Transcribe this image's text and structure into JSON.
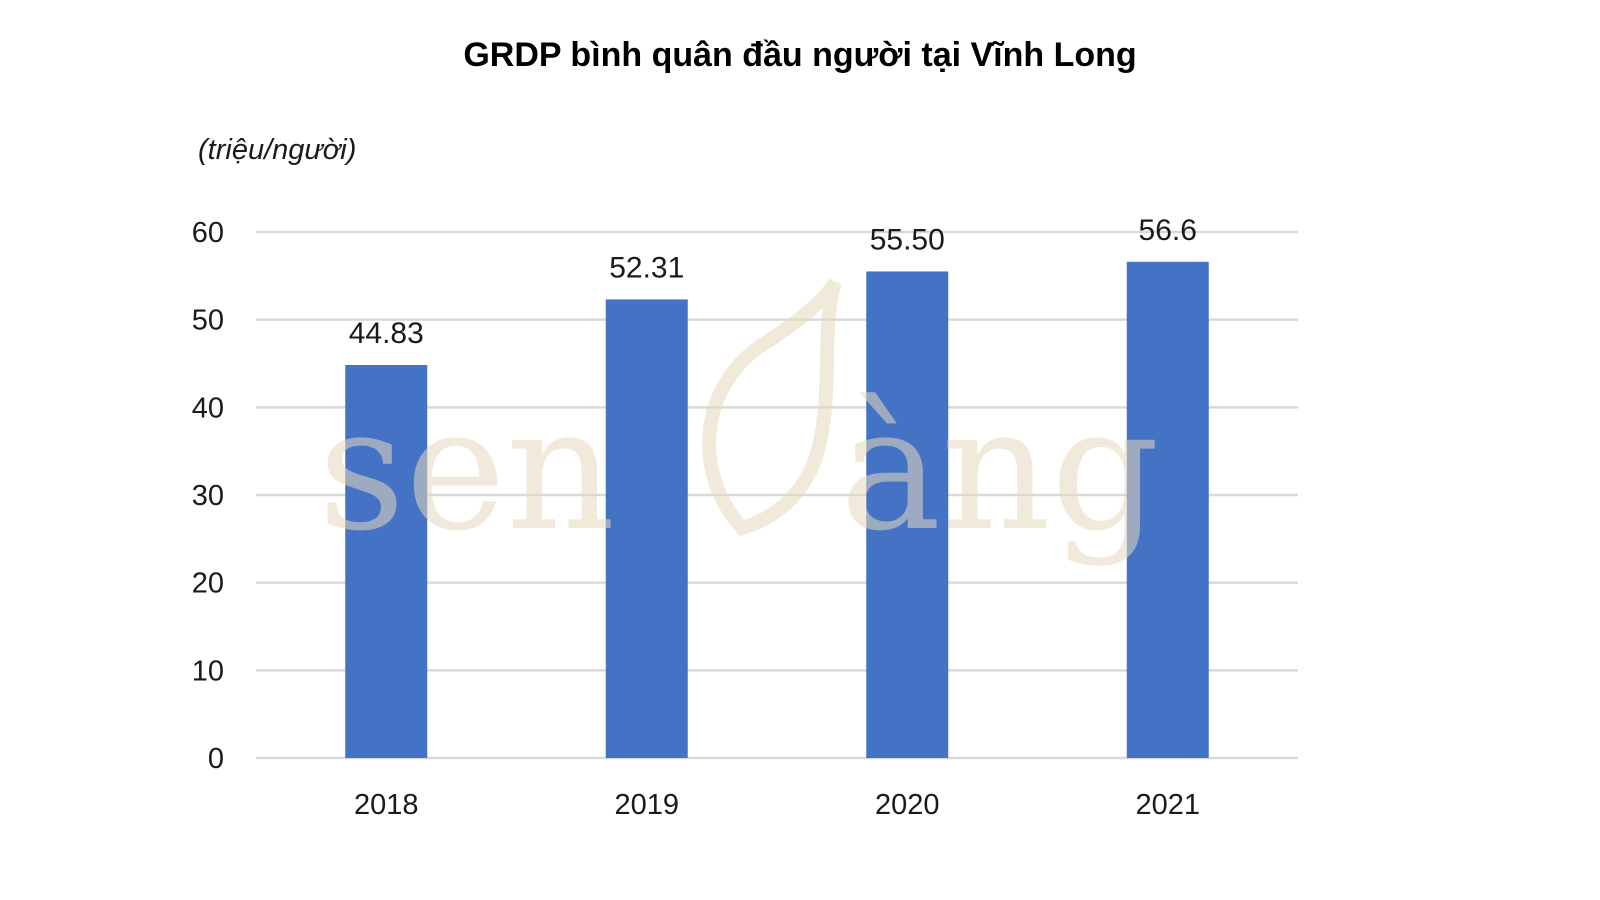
{
  "chart_data": {
    "type": "bar",
    "title": "GRDP bình quân đầu người tại Vĩnh Long",
    "unit_label": "(triệu/người)",
    "categories": [
      "2018",
      "2019",
      "2020",
      "2021"
    ],
    "values": [
      44.83,
      52.31,
      55.5,
      56.6
    ],
    "value_labels": [
      "44.83",
      "52.31",
      "55.50",
      "56.6"
    ],
    "ylim": [
      0,
      60
    ],
    "yticks": [
      0,
      10,
      20,
      30,
      40,
      50,
      60
    ],
    "grid": true,
    "bar_color": "#4472C4",
    "grid_color": "#d9d9d9"
  },
  "watermark": {
    "text": "senVàng",
    "color": "#e6d9be"
  }
}
